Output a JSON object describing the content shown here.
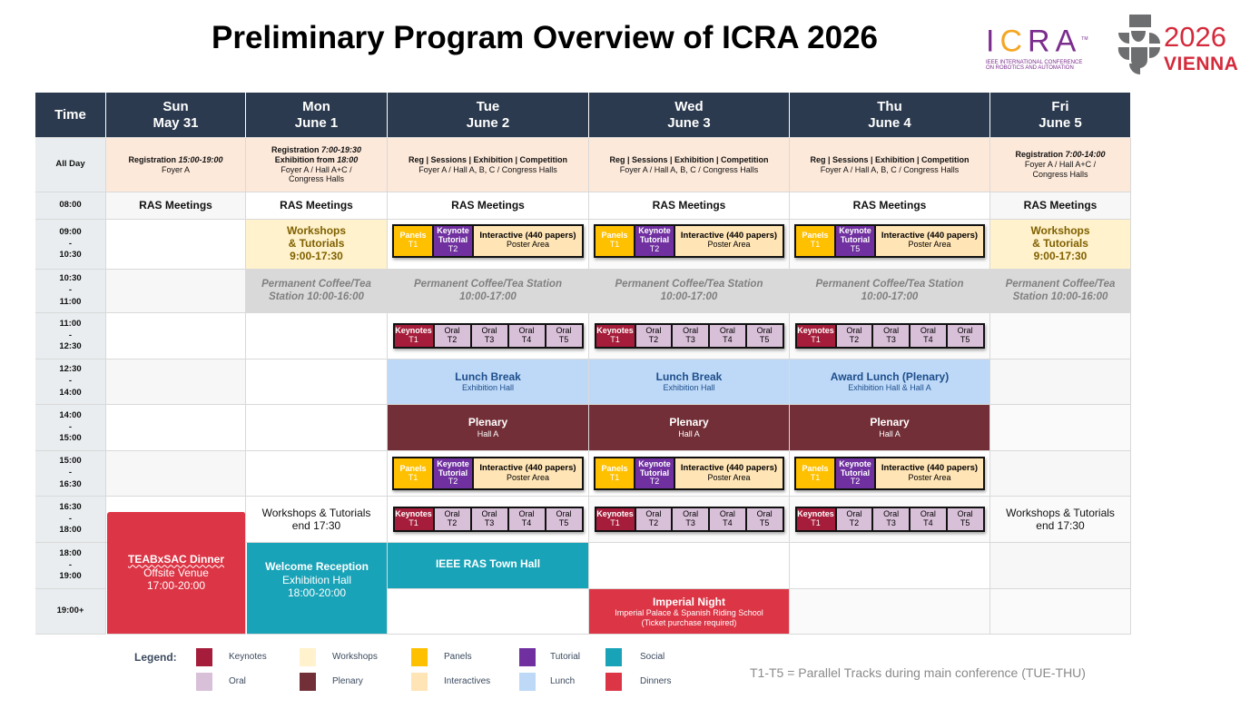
{
  "title": "Preliminary Program Overview of ICRA 2026",
  "logos": {
    "icra": {
      "letters": [
        "I",
        "C",
        "R",
        "A"
      ],
      "tm": "TM",
      "tagline_1": "IEEE INTERNATIONAL CONFERENCE",
      "tagline_2": "ON ROBOTICS AND AUTOMATION"
    },
    "vienna": {
      "year": "2026",
      "city": "VIENNA"
    }
  },
  "colors": {
    "header": "#2b3a4e",
    "keynotes": "#a51d3a",
    "workshops": "#fff2cc",
    "panels": "#ffc000",
    "tutorial": "#7030a0",
    "social": "#19a3b8",
    "oral": "#d9c0d9",
    "plenary": "#722f37",
    "interactives": "#ffe4b5",
    "lunch": "#bdd9f7",
    "dinners": "#dc3545",
    "icra_purple": "#7b2d8e",
    "vienna_red": "#d42a3c"
  },
  "header": {
    "time": "Time",
    "days": [
      {
        "dow": "Sun",
        "date": "May 31"
      },
      {
        "dow": "Mon",
        "date": "June 1"
      },
      {
        "dow": "Tue",
        "date": "June 2"
      },
      {
        "dow": "Wed",
        "date": "June 3"
      },
      {
        "dow": "Thu",
        "date": "June 4"
      },
      {
        "dow": "Fri",
        "date": "June 5"
      }
    ]
  },
  "rows": [
    {
      "time": "All Day",
      "cells": [
        {
          "kind": "allday",
          "lines": [
            {
              "label": "Registration ",
              "time": "15:00-19:00"
            }
          ],
          "venue": "Foyer A"
        },
        {
          "kind": "allday",
          "lines": [
            {
              "label": "Registration ",
              "time": "7:00-19:30"
            },
            {
              "label": "Exhibition from ",
              "time": "18:00"
            }
          ],
          "venue": "Foyer A / Hall A+C /\nCongress Halls"
        },
        {
          "kind": "allday",
          "lines": [
            {
              "label": "Reg | Sessions | Exhibition | Competition",
              "time": ""
            }
          ],
          "venue": "Foyer A / Hall A, B, C / Congress Halls"
        },
        {
          "kind": "allday",
          "lines": [
            {
              "label": "Reg | Sessions | Exhibition | Competition",
              "time": ""
            }
          ],
          "venue": "Foyer A / Hall A, B, C / Congress Halls"
        },
        {
          "kind": "allday",
          "lines": [
            {
              "label": "Reg | Sessions | Exhibition | Competition",
              "time": ""
            }
          ],
          "venue": "Foyer A / Hall A, B, C / Congress Halls"
        },
        {
          "kind": "allday",
          "lines": [
            {
              "label": "Registration ",
              "time": "7:00-14:00"
            }
          ],
          "venue": "Foyer A / Hall A+C /\nCongress Halls"
        }
      ]
    },
    {
      "time": "08:00",
      "cells": [
        {
          "kind": "ras",
          "text": "RAS Meetings"
        },
        {
          "kind": "ras",
          "text": "RAS Meetings"
        },
        {
          "kind": "ras",
          "text": "RAS Meetings"
        },
        {
          "kind": "ras",
          "text": "RAS Meetings"
        },
        {
          "kind": "ras",
          "text": "RAS Meetings"
        },
        {
          "kind": "ras",
          "text": "RAS Meetings"
        }
      ]
    },
    {
      "time": "09:00\n-\n10:30",
      "cells": [
        {
          "kind": "empty"
        },
        {
          "kind": "workshop",
          "text": "Workshops\n& Tutorials\n9:00-17:30"
        },
        {
          "kind": "sessions",
          "tracks": [
            {
              "type": "panels",
              "title": "Panels",
              "track": "T1"
            },
            {
              "type": "tutorial",
              "title": "Keynote Tutorial",
              "track": "T2"
            },
            {
              "type": "interactive",
              "title": "Interactive (440 papers)",
              "track": "Poster Area"
            }
          ]
        },
        {
          "kind": "sessions",
          "tracks": [
            {
              "type": "panels",
              "title": "Panels",
              "track": "T1"
            },
            {
              "type": "tutorial",
              "title": "Keynote Tutorial",
              "track": "T2"
            },
            {
              "type": "interactive",
              "title": "Interactive (440 papers)",
              "track": "Poster Area"
            }
          ]
        },
        {
          "kind": "sessions",
          "tracks": [
            {
              "type": "panels",
              "title": "Panels",
              "track": "T1"
            },
            {
              "type": "tutorial",
              "title": "Keynote Tutorial",
              "track": "T5"
            },
            {
              "type": "interactive",
              "title": "Interactive (440 papers)",
              "track": "Poster Area"
            }
          ]
        },
        {
          "kind": "workshop",
          "text": "Workshops\n& Tutorials\n9:00-17:30"
        }
      ]
    },
    {
      "time": "10:30\n-\n11:00",
      "cells": [
        {
          "kind": "empty"
        },
        {
          "kind": "coffee",
          "text": "Permanent Coffee/Tea\nStation 10:00-16:00"
        },
        {
          "kind": "coffee",
          "text": "Permanent Coffee/Tea Station\n10:00-17:00"
        },
        {
          "kind": "coffee",
          "text": "Permanent Coffee/Tea Station\n10:00-17:00"
        },
        {
          "kind": "coffee",
          "text": "Permanent Coffee/Tea Station\n10:00-17:00"
        },
        {
          "kind": "coffee",
          "text": "Permanent Coffee/Tea\nStation 10:00-16:00"
        }
      ]
    },
    {
      "time": "11:00\n-\n12:30",
      "cells": [
        {
          "kind": "empty"
        },
        {
          "kind": "empty"
        },
        {
          "kind": "orals",
          "tracks": [
            {
              "type": "keynotes",
              "title": "Keynotes",
              "track": "T1"
            },
            {
              "type": "oral",
              "title": "Oral",
              "track": "T2"
            },
            {
              "type": "oral",
              "title": "Oral",
              "track": "T3"
            },
            {
              "type": "oral",
              "title": "Oral",
              "track": "T4"
            },
            {
              "type": "oral",
              "title": "Oral",
              "track": "T5"
            }
          ]
        },
        {
          "kind": "orals",
          "tracks": [
            {
              "type": "keynotes",
              "title": "Keynotes",
              "track": "T1"
            },
            {
              "type": "oral",
              "title": "Oral",
              "track": "T2"
            },
            {
              "type": "oral",
              "title": "Oral",
              "track": "T3"
            },
            {
              "type": "oral",
              "title": "Oral",
              "track": "T4"
            },
            {
              "type": "oral",
              "title": "Oral",
              "track": "T5"
            }
          ]
        },
        {
          "kind": "orals",
          "tracks": [
            {
              "type": "keynotes",
              "title": "Keynotes",
              "track": "T1"
            },
            {
              "type": "oral",
              "title": "Oral",
              "track": "T2"
            },
            {
              "type": "oral",
              "title": "Oral",
              "track": "T3"
            },
            {
              "type": "oral",
              "title": "Oral",
              "track": "T4"
            },
            {
              "type": "oral",
              "title": "Oral",
              "track": "T5"
            }
          ]
        },
        {
          "kind": "empty"
        }
      ]
    },
    {
      "time": "12:30\n-\n14:00",
      "cells": [
        {
          "kind": "empty"
        },
        {
          "kind": "empty"
        },
        {
          "kind": "lunch",
          "title": "Lunch Break",
          "sub": "Exhibition Hall"
        },
        {
          "kind": "lunch",
          "title": "Lunch Break",
          "sub": "Exhibition Hall"
        },
        {
          "kind": "lunch",
          "title": "Award Lunch (Plenary)",
          "sub": "Exhibition Hall & Hall A"
        },
        {
          "kind": "empty"
        }
      ]
    },
    {
      "time": "14:00\n-\n15:00",
      "cells": [
        {
          "kind": "empty"
        },
        {
          "kind": "empty"
        },
        {
          "kind": "plenary",
          "title": "Plenary",
          "sub": "Hall A"
        },
        {
          "kind": "plenary",
          "title": "Plenary",
          "sub": "Hall A"
        },
        {
          "kind": "plenary",
          "title": "Plenary",
          "sub": "Hall A"
        },
        {
          "kind": "empty"
        }
      ]
    },
    {
      "time": "15:00\n-\n16:30",
      "cells": [
        {
          "kind": "empty"
        },
        {
          "kind": "empty"
        },
        {
          "kind": "sessions",
          "tracks": [
            {
              "type": "panels",
              "title": "Panels",
              "track": "T1"
            },
            {
              "type": "tutorial",
              "title": "Keynote Tutorial",
              "track": "T2"
            },
            {
              "type": "interactive",
              "title": "Interactive (440 papers)",
              "track": "Poster Area"
            }
          ]
        },
        {
          "kind": "sessions",
          "tracks": [
            {
              "type": "panels",
              "title": "Panels",
              "track": "T1"
            },
            {
              "type": "tutorial",
              "title": "Keynote Tutorial",
              "track": "T2"
            },
            {
              "type": "interactive",
              "title": "Interactive (440 papers)",
              "track": "Poster Area"
            }
          ]
        },
        {
          "kind": "sessions",
          "tracks": [
            {
              "type": "panels",
              "title": "Panels",
              "track": "T1"
            },
            {
              "type": "tutorial",
              "title": "Keynote Tutorial",
              "track": "T2"
            },
            {
              "type": "interactive",
              "title": "Interactive (440 papers)",
              "track": "Poster Area"
            }
          ]
        },
        {
          "kind": "empty"
        }
      ]
    },
    {
      "time": "16:30\n-\n18:00",
      "cells": [
        {
          "kind": "empty"
        },
        {
          "kind": "note",
          "text": "Workshops & Tutorials\nend 17:30"
        },
        {
          "kind": "orals",
          "tracks": [
            {
              "type": "keynotes",
              "title": "Keynotes",
              "track": "T1"
            },
            {
              "type": "oral",
              "title": "Oral",
              "track": "T2"
            },
            {
              "type": "oral",
              "title": "Oral",
              "track": "T3"
            },
            {
              "type": "oral",
              "title": "Oral",
              "track": "T4"
            },
            {
              "type": "oral",
              "title": "Oral",
              "track": "T5"
            }
          ]
        },
        {
          "kind": "orals",
          "tracks": [
            {
              "type": "keynotes",
              "title": "Keynotes",
              "track": "T1"
            },
            {
              "type": "oral",
              "title": "Oral",
              "track": "T2"
            },
            {
              "type": "oral",
              "title": "Oral",
              "track": "T3"
            },
            {
              "type": "oral",
              "title": "Oral",
              "track": "T4"
            },
            {
              "type": "oral",
              "title": "Oral",
              "track": "T5"
            }
          ]
        },
        {
          "kind": "orals",
          "tracks": [
            {
              "type": "keynotes",
              "title": "Keynotes",
              "track": "T1"
            },
            {
              "type": "oral",
              "title": "Oral",
              "track": "T2"
            },
            {
              "type": "oral",
              "title": "Oral",
              "track": "T3"
            },
            {
              "type": "oral",
              "title": "Oral",
              "track": "T4"
            },
            {
              "type": "oral",
              "title": "Oral",
              "track": "T5"
            }
          ]
        },
        {
          "kind": "note",
          "text": "Workshops & Tutorials\nend 17:30"
        }
      ]
    },
    {
      "time": "18:00\n-\n19:00",
      "cells": [
        {
          "kind": "covered"
        },
        {
          "kind": "covered"
        },
        {
          "kind": "social",
          "title": "IEEE RAS Town Hall",
          "sub": ""
        },
        {
          "kind": "empty"
        },
        {
          "kind": "empty"
        },
        {
          "kind": "empty"
        }
      ]
    },
    {
      "time": "19:00+",
      "cells": [
        {
          "kind": "covered"
        },
        {
          "kind": "covered"
        },
        {
          "kind": "empty"
        },
        {
          "kind": "dinner",
          "title": "Imperial Night",
          "sub": "Imperial Palace & Spanish Riding School\n(Ticket purchase required)"
        },
        {
          "kind": "empty"
        },
        {
          "kind": "empty"
        }
      ]
    }
  ],
  "spanning_events": {
    "sun_dinner": {
      "title": "TEABxSAC Dinner",
      "venue": "Offsite Venue",
      "time": "17:00-20:00"
    },
    "mon_reception": {
      "title": "Welcome Reception",
      "venue": "Exhibition Hall",
      "time": "18:00-20:00"
    }
  },
  "legend": {
    "label": "Legend:",
    "items": [
      {
        "name": "Keynotes",
        "color": "#a51d3a"
      },
      {
        "name": "Workshops",
        "color": "#fff2cc"
      },
      {
        "name": "Panels",
        "color": "#ffc000"
      },
      {
        "name": "Tutorial",
        "color": "#7030a0"
      },
      {
        "name": "Social",
        "color": "#19a3b8"
      },
      {
        "name": "Oral",
        "color": "#d9c0d9"
      },
      {
        "name": "Plenary",
        "color": "#722f37"
      },
      {
        "name": "Interactives",
        "color": "#ffe4b5"
      },
      {
        "name": "Lunch",
        "color": "#bdd9f7"
      },
      {
        "name": "Dinners",
        "color": "#dc3545"
      }
    ]
  },
  "footnote": "T1-T5 = Parallel Tracks during main conference (TUE-THU)"
}
